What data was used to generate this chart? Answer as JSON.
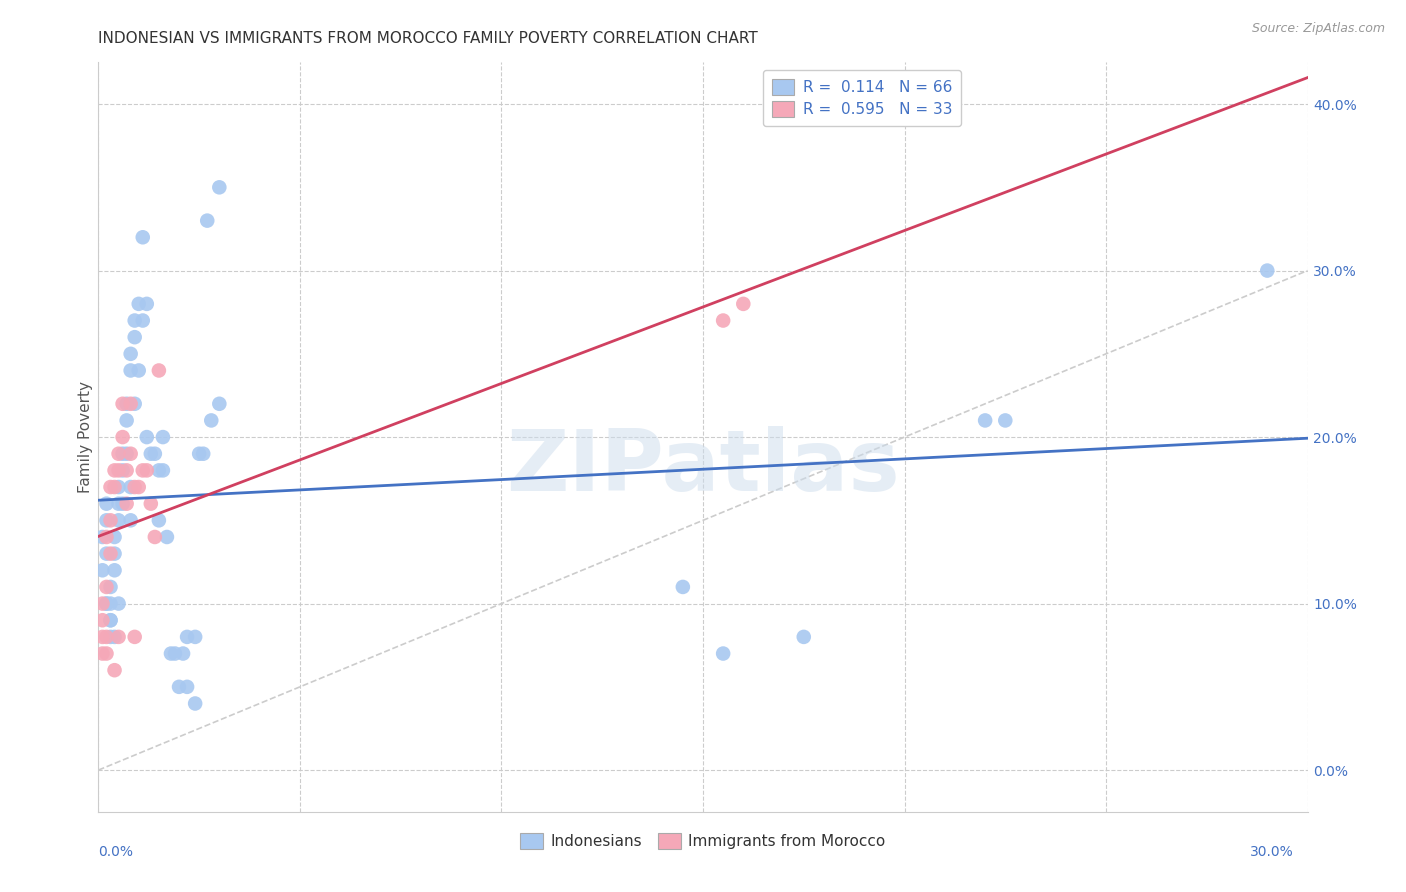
{
  "title": "INDONESIAN VS IMMIGRANTS FROM MOROCCO FAMILY POVERTY CORRELATION CHART",
  "source": "Source: ZipAtlas.com",
  "ylabel": "Family Poverty",
  "ylabel_right_vals": [
    0.0,
    0.1,
    0.2,
    0.3,
    0.4
  ],
  "xmin": 0.0,
  "xmax": 0.3,
  "ymin": -0.025,
  "ymax": 0.425,
  "blue_color": "#a8c8f0",
  "pink_color": "#f5a8b8",
  "blue_line_color": "#4472c4",
  "pink_line_color": "#d04060",
  "diagonal_color": "#cccccc",
  "watermark": "ZIPatlas",
  "indonesian_x": [
    0.001,
    0.001,
    0.002,
    0.002,
    0.002,
    0.002,
    0.002,
    0.003,
    0.003,
    0.003,
    0.003,
    0.003,
    0.004,
    0.004,
    0.004,
    0.004,
    0.005,
    0.005,
    0.005,
    0.005,
    0.006,
    0.006,
    0.006,
    0.007,
    0.007,
    0.007,
    0.008,
    0.008,
    0.008,
    0.008,
    0.009,
    0.009,
    0.009,
    0.01,
    0.01,
    0.011,
    0.011,
    0.012,
    0.012,
    0.013,
    0.014,
    0.015,
    0.015,
    0.016,
    0.016,
    0.017,
    0.018,
    0.019,
    0.02,
    0.021,
    0.022,
    0.022,
    0.024,
    0.024,
    0.025,
    0.026,
    0.027,
    0.028,
    0.03,
    0.03,
    0.145,
    0.155,
    0.175,
    0.22,
    0.225,
    0.29
  ],
  "indonesian_y": [
    0.12,
    0.14,
    0.15,
    0.13,
    0.16,
    0.1,
    0.1,
    0.11,
    0.1,
    0.09,
    0.09,
    0.08,
    0.14,
    0.13,
    0.12,
    0.08,
    0.17,
    0.16,
    0.15,
    0.1,
    0.18,
    0.19,
    0.16,
    0.22,
    0.21,
    0.19,
    0.25,
    0.24,
    0.17,
    0.15,
    0.26,
    0.27,
    0.22,
    0.28,
    0.24,
    0.32,
    0.27,
    0.28,
    0.2,
    0.19,
    0.19,
    0.18,
    0.15,
    0.2,
    0.18,
    0.14,
    0.07,
    0.07,
    0.05,
    0.07,
    0.08,
    0.05,
    0.04,
    0.08,
    0.19,
    0.19,
    0.33,
    0.21,
    0.22,
    0.35,
    0.11,
    0.07,
    0.08,
    0.21,
    0.21,
    0.3
  ],
  "morocco_x": [
    0.001,
    0.001,
    0.001,
    0.001,
    0.002,
    0.002,
    0.002,
    0.002,
    0.003,
    0.003,
    0.003,
    0.004,
    0.004,
    0.004,
    0.005,
    0.005,
    0.005,
    0.006,
    0.006,
    0.007,
    0.007,
    0.008,
    0.008,
    0.009,
    0.009,
    0.01,
    0.011,
    0.012,
    0.013,
    0.014,
    0.015,
    0.155,
    0.16
  ],
  "morocco_y": [
    0.08,
    0.09,
    0.1,
    0.07,
    0.14,
    0.11,
    0.08,
    0.07,
    0.17,
    0.15,
    0.13,
    0.18,
    0.17,
    0.06,
    0.19,
    0.18,
    0.08,
    0.22,
    0.2,
    0.18,
    0.16,
    0.22,
    0.19,
    0.17,
    0.08,
    0.17,
    0.18,
    0.18,
    0.16,
    0.14,
    0.24,
    0.27,
    0.28
  ]
}
